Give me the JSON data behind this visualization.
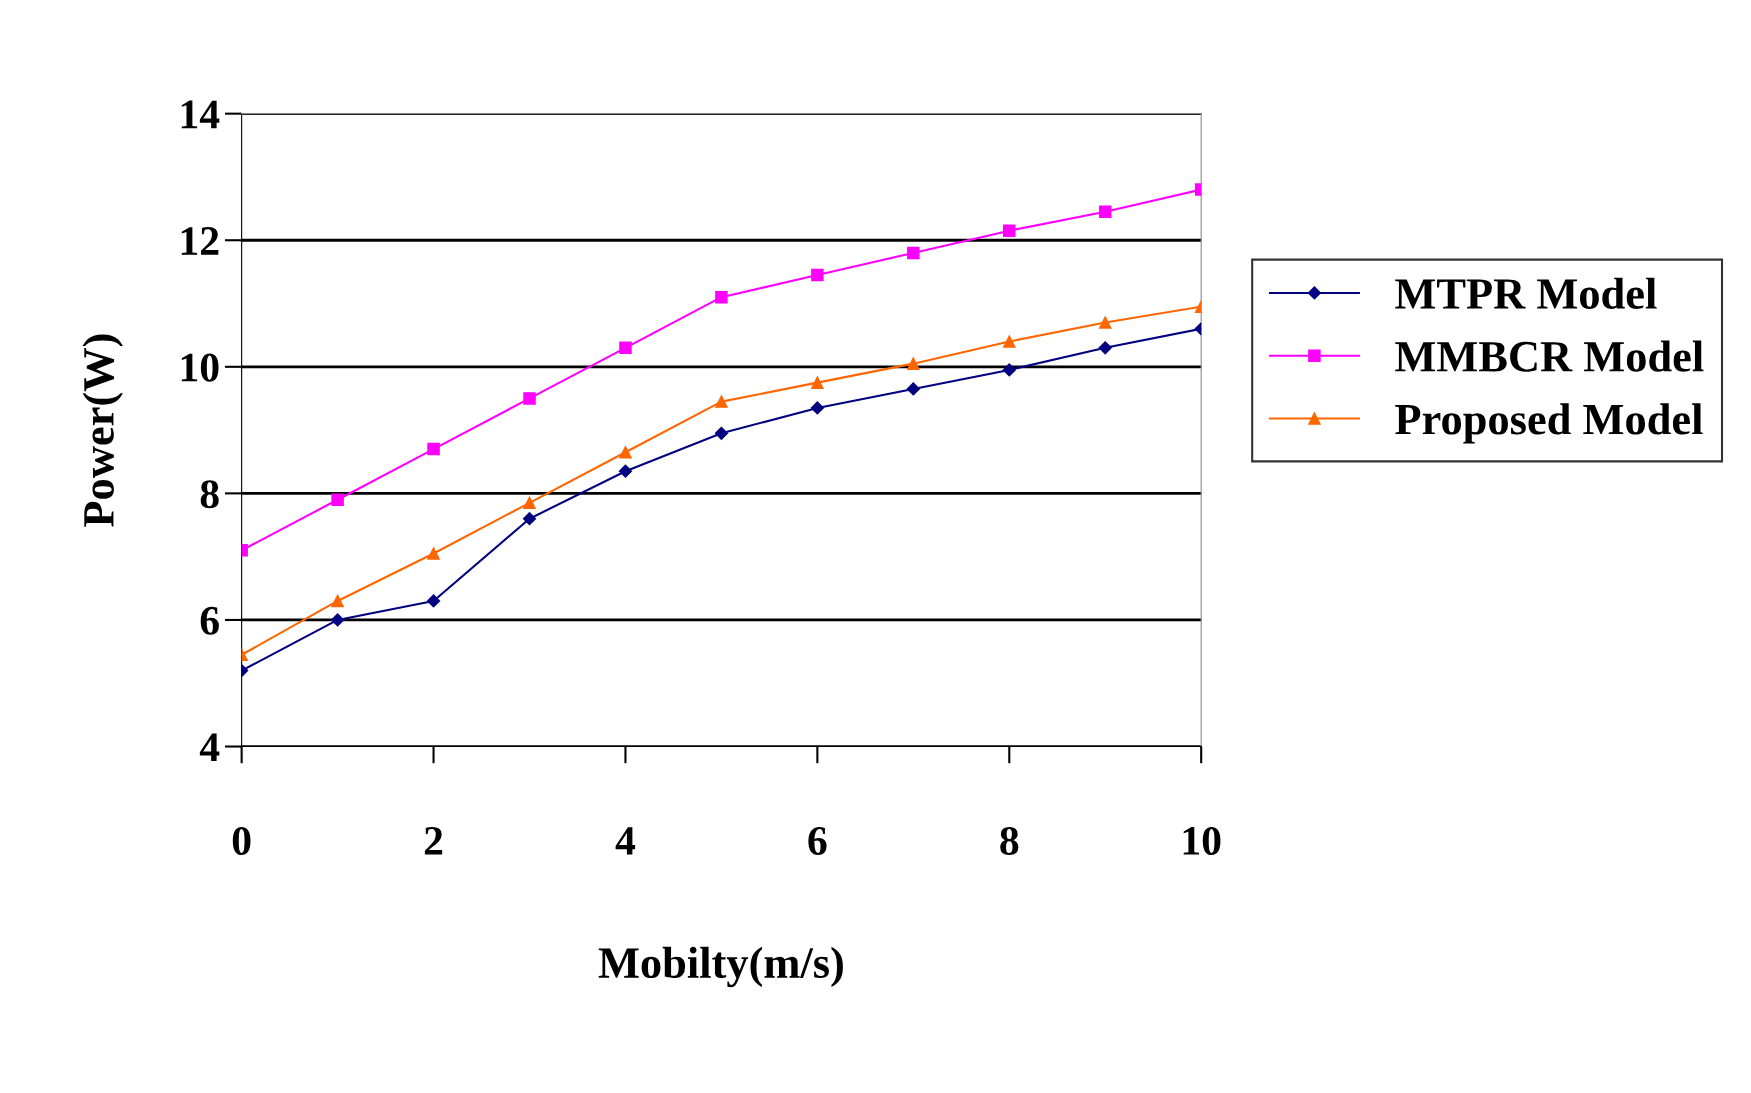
{
  "chart_data": {
    "type": "line",
    "xlabel": "Mobilty(m/s)",
    "ylabel": "Power(W)",
    "x": [
      0,
      1,
      2,
      3,
      4,
      5,
      6,
      7,
      8,
      9,
      10
    ],
    "series": [
      {
        "name": "MTPR Model",
        "color": "#000080",
        "marker": "diamond",
        "values": [
          5.2,
          6.0,
          6.3,
          7.6,
          8.35,
          8.95,
          9.35,
          9.65,
          9.95,
          10.3,
          10.6
        ]
      },
      {
        "name": "MMBCR Model",
        "color": "#ff00ff",
        "marker": "square",
        "values": [
          7.1,
          7.9,
          8.7,
          9.5,
          10.3,
          11.1,
          11.45,
          11.8,
          12.15,
          12.45,
          12.8
        ]
      },
      {
        "name": "Proposed Model",
        "color": "#ff6600",
        "marker": "triangle",
        "values": [
          5.45,
          6.3,
          7.05,
          7.85,
          8.65,
          9.45,
          9.75,
          10.05,
          10.4,
          10.7,
          10.95
        ]
      }
    ],
    "xlim": [
      0,
      10
    ],
    "ylim": [
      4,
      14
    ],
    "xticks": [
      0,
      2,
      4,
      6,
      8,
      10
    ],
    "yticks": [
      4,
      6,
      8,
      10,
      12,
      14
    ],
    "grid": "y",
    "legend": "right",
    "line_style": "solid"
  }
}
